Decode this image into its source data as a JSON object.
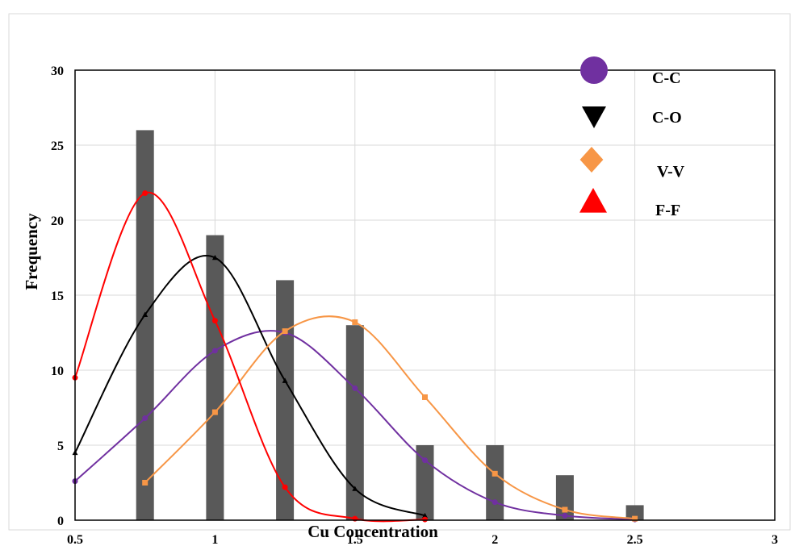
{
  "chart_data": {
    "type": "bar",
    "xlabel": "Cu Concentration",
    "ylabel": "Frequency",
    "xlim": [
      0.5,
      3
    ],
    "ylim": [
      0,
      30
    ],
    "x_ticks": [
      "0.5",
      "1",
      "1.5",
      "2",
      "2.5",
      "3"
    ],
    "y_ticks": [
      "0",
      "5",
      "10",
      "15",
      "20",
      "25",
      "30"
    ],
    "grid": true,
    "legend_placement": "top-right",
    "histogram": {
      "x": [
        0.75,
        1.0,
        1.25,
        1.5,
        1.75,
        2.0,
        2.25,
        2.5
      ],
      "values": [
        26,
        19,
        16,
        13,
        5,
        5,
        3,
        1
      ],
      "color": "#595959"
    },
    "series": [
      {
        "name": "C-C",
        "marker": "circle",
        "color": "#7030a0",
        "x": [
          0.5,
          0.75,
          1.0,
          1.25,
          1.5,
          1.75,
          2.0,
          2.25,
          2.5
        ],
        "y": [
          2.6,
          6.8,
          11.3,
          12.5,
          8.8,
          4.0,
          1.2,
          0.3,
          0.05
        ]
      },
      {
        "name": "C-O",
        "marker": "triangle-down",
        "color": "#000000",
        "x": [
          0.5,
          0.75,
          1.0,
          1.25,
          1.5,
          1.75
        ],
        "y": [
          4.5,
          13.7,
          17.5,
          9.3,
          2.1,
          0.3
        ]
      },
      {
        "name": "V-V",
        "marker": "diamond",
        "color": "#f79646",
        "x": [
          0.75,
          1.0,
          1.25,
          1.5,
          1.75,
          2.0,
          2.25,
          2.5
        ],
        "y": [
          2.5,
          7.2,
          12.6,
          13.2,
          8.2,
          3.1,
          0.7,
          0.1
        ]
      },
      {
        "name": "F-F",
        "marker": "triangle-up",
        "color": "#ff0000",
        "x": [
          0.5,
          0.75,
          1.0,
          1.25,
          1.5,
          1.75
        ],
        "y": [
          9.5,
          21.8,
          13.3,
          2.2,
          0.1,
          0.05
        ]
      }
    ]
  }
}
